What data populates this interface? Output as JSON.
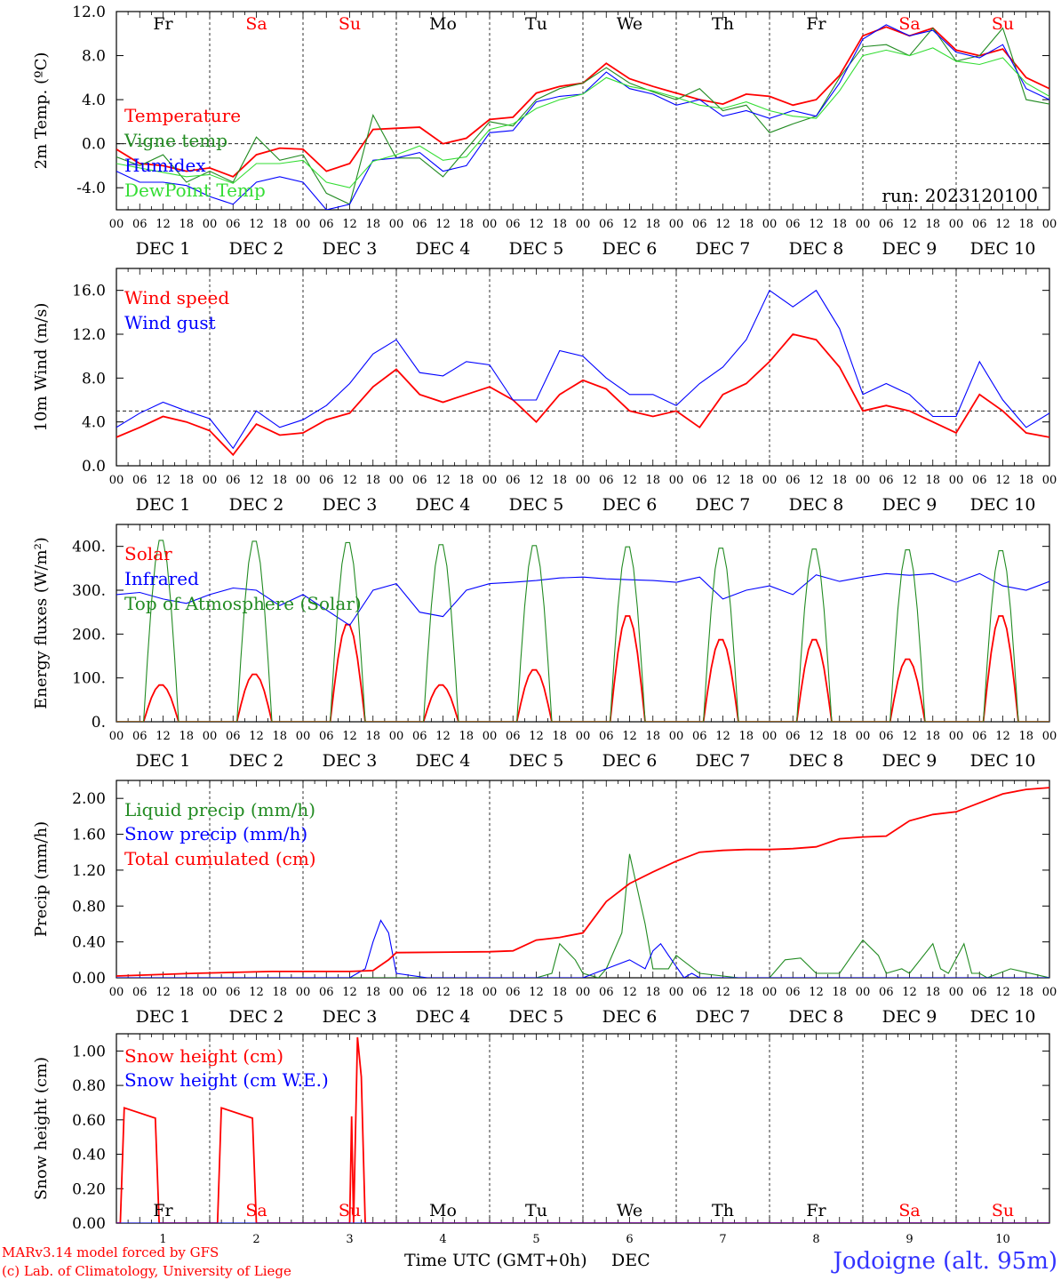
{
  "hour_labels": [
    "00",
    "06",
    "12",
    "18"
  ],
  "dates": [
    "DEC  1",
    "DEC  2",
    "DEC  3",
    "DEC  4",
    "DEC  5",
    "DEC  6",
    "DEC  7",
    "DEC  8",
    "DEC  9",
    "DEC 10"
  ],
  "day_names": [
    {
      "name": "Fr",
      "color": "#000000"
    },
    {
      "name": "Sa",
      "color": "#ff0000"
    },
    {
      "name": "Su",
      "color": "#ff0000"
    },
    {
      "name": "Mo",
      "color": "#000000"
    },
    {
      "name": "Tu",
      "color": "#000000"
    },
    {
      "name": "We",
      "color": "#000000"
    },
    {
      "name": "Th",
      "color": "#000000"
    },
    {
      "name": "Fr",
      "color": "#000000"
    },
    {
      "name": "Sa",
      "color": "#ff0000"
    },
    {
      "name": "Su",
      "color": "#ff0000"
    }
  ],
  "bottom_day_numbers": [
    "1",
    "2",
    "3",
    "4",
    "5",
    "6",
    "7",
    "8",
    "9",
    "10"
  ],
  "footer": {
    "model": "MARv3.14 model forced by GFS",
    "copyright": "(c) Lab. of Climatology, University of Liege",
    "xlabel": "Time UTC (GMT+0h)",
    "xlabel_month": "DEC",
    "station": "Jodoigne (alt. 95m)"
  },
  "colors": {
    "red": "#ff0000",
    "green": "#228b22",
    "blue": "#0000ff",
    "lightgreen": "#33dd33",
    "station": "#3333ff"
  },
  "chart_data": [
    {
      "id": "temp",
      "type": "line",
      "ylabel": "2m Temp. (ºC)",
      "ylim": [
        -6,
        12
      ],
      "yticks": [
        -4.0,
        0.0,
        4.0,
        8.0,
        12.0
      ],
      "ytick_labels": [
        "-4.0",
        "0.0",
        "4.0",
        "8.0",
        "12.0"
      ],
      "refline": 0,
      "annotation": "run: 2023120100",
      "x_unit": "hours since DEC 1 00 UTC",
      "series": [
        {
          "name": "Temperature",
          "color": "red",
          "x": [
            0,
            6,
            12,
            18,
            24,
            30,
            36,
            42,
            48,
            54,
            60,
            66,
            72,
            78,
            84,
            90,
            96,
            102,
            108,
            114,
            120,
            126,
            132,
            138,
            144,
            150,
            156,
            162,
            168,
            174,
            180,
            186,
            192,
            198,
            204,
            210,
            216,
            222,
            228,
            234,
            240
          ],
          "y": [
            -0.5,
            -1.8,
            -2.0,
            -2.5,
            -2.2,
            -3.0,
            -1.0,
            -0.4,
            -0.5,
            -2.5,
            -1.8,
            1.3,
            1.4,
            1.5,
            0.0,
            0.5,
            2.2,
            2.4,
            4.6,
            5.2,
            5.5,
            7.3,
            5.9,
            5.2,
            4.6,
            4.0,
            3.6,
            4.5,
            4.3,
            3.5,
            4.0,
            6.2,
            9.8,
            10.6,
            9.8,
            10.5,
            8.5,
            8.0,
            8.6,
            6.0,
            5.0
          ]
        },
        {
          "name": "Vigne temp",
          "color": "green",
          "x": [
            0,
            6,
            12,
            18,
            24,
            30,
            36,
            42,
            48,
            54,
            60,
            66,
            72,
            78,
            84,
            90,
            96,
            102,
            108,
            114,
            120,
            126,
            132,
            138,
            144,
            150,
            156,
            162,
            168,
            174,
            180,
            186,
            192,
            198,
            204,
            210,
            216,
            222,
            228,
            234,
            240
          ],
          "y": [
            -1.2,
            -2.0,
            -1.0,
            -3.5,
            -2.5,
            -3.5,
            0.6,
            -1.5,
            -1.0,
            -4.5,
            -5.5,
            2.6,
            -1.3,
            -1.3,
            -3.0,
            -0.5,
            2.0,
            1.6,
            4.0,
            5.0,
            5.5,
            6.9,
            5.5,
            4.7,
            4.0,
            5.0,
            3.0,
            3.5,
            1.0,
            1.8,
            2.5,
            6.0,
            8.8,
            9.0,
            8.0,
            10.5,
            7.5,
            8.0,
            10.5,
            4.0,
            3.6
          ]
        },
        {
          "name": "Humidex",
          "color": "blue",
          "x": [
            0,
            6,
            12,
            18,
            24,
            30,
            36,
            42,
            48,
            54,
            60,
            66,
            72,
            78,
            84,
            90,
            96,
            102,
            108,
            114,
            120,
            126,
            132,
            138,
            144,
            150,
            156,
            162,
            168,
            174,
            180,
            186,
            192,
            198,
            204,
            210,
            216,
            222,
            228,
            234,
            240
          ],
          "y": [
            -2.5,
            -3.5,
            -3.5,
            -3.8,
            -4.8,
            -5.5,
            -3.5,
            -3.0,
            -3.5,
            -6.0,
            -5.5,
            -1.5,
            -1.3,
            -0.8,
            -2.5,
            -2.0,
            1.0,
            1.2,
            3.8,
            4.3,
            4.5,
            6.5,
            5.0,
            4.5,
            3.5,
            4.0,
            2.5,
            3.0,
            2.3,
            3.0,
            2.5,
            5.5,
            9.5,
            10.8,
            9.8,
            10.3,
            8.3,
            7.8,
            9.0,
            5.0,
            4.0
          ]
        },
        {
          "name": "DewPoint Temp",
          "color": "lightgreen",
          "x": [
            0,
            6,
            12,
            18,
            24,
            30,
            36,
            42,
            48,
            54,
            60,
            66,
            72,
            78,
            84,
            90,
            96,
            102,
            108,
            114,
            120,
            126,
            132,
            138,
            144,
            150,
            156,
            162,
            168,
            174,
            180,
            186,
            192,
            198,
            204,
            210,
            216,
            222,
            228,
            234,
            240
          ],
          "y": [
            -1.8,
            -2.2,
            -2.6,
            -3.0,
            -2.8,
            -3.6,
            -1.8,
            -1.8,
            -1.5,
            -3.5,
            -4.0,
            -1.6,
            -1.0,
            -0.2,
            -1.5,
            -1.2,
            1.3,
            1.8,
            3.2,
            4.0,
            4.5,
            6.0,
            5.2,
            4.8,
            4.2,
            3.5,
            3.2,
            3.8,
            3.0,
            2.5,
            2.3,
            4.8,
            8.0,
            8.5,
            8.0,
            8.7,
            7.5,
            7.2,
            7.8,
            5.5,
            4.3
          ]
        }
      ]
    },
    {
      "id": "wind",
      "type": "line",
      "ylabel": "10m Wind (m/s)",
      "ylim": [
        0,
        18
      ],
      "yticks": [
        0.0,
        4.0,
        8.0,
        12.0,
        16.0
      ],
      "ytick_labels": [
        "0.0",
        "4.0",
        "8.0",
        "12.0",
        "16.0"
      ],
      "refline": 5,
      "series": [
        {
          "name": "Wind speed",
          "color": "red",
          "x": [
            0,
            6,
            12,
            18,
            24,
            30,
            36,
            42,
            48,
            54,
            60,
            66,
            72,
            78,
            84,
            90,
            96,
            102,
            108,
            114,
            120,
            126,
            132,
            138,
            144,
            150,
            156,
            162,
            168,
            174,
            180,
            186,
            192,
            198,
            204,
            210,
            216,
            222,
            228,
            234,
            240
          ],
          "y": [
            2.6,
            3.5,
            4.5,
            4.0,
            3.2,
            1.0,
            3.8,
            2.8,
            3.0,
            4.2,
            4.8,
            7.2,
            8.8,
            6.5,
            5.8,
            6.5,
            7.2,
            6.0,
            4.0,
            6.5,
            7.8,
            7.0,
            5.0,
            4.5,
            5.0,
            3.5,
            6.5,
            7.5,
            9.5,
            12.0,
            11.5,
            9.0,
            5.0,
            5.5,
            5.0,
            4.0,
            3.0,
            6.5,
            5.0,
            3.0,
            2.6
          ]
        },
        {
          "name": "Wind gust",
          "color": "blue",
          "x": [
            0,
            6,
            12,
            18,
            24,
            30,
            36,
            42,
            48,
            54,
            60,
            66,
            72,
            78,
            84,
            90,
            96,
            102,
            108,
            114,
            120,
            126,
            132,
            138,
            144,
            150,
            156,
            162,
            168,
            174,
            180,
            186,
            192,
            198,
            204,
            210,
            216,
            222,
            228,
            234,
            240
          ],
          "y": [
            3.5,
            4.8,
            5.8,
            5.0,
            4.3,
            1.6,
            5.0,
            3.5,
            4.2,
            5.5,
            7.5,
            10.2,
            11.5,
            8.5,
            8.2,
            9.5,
            9.2,
            6.0,
            6.0,
            10.5,
            10.0,
            8.0,
            6.5,
            6.5,
            5.5,
            7.5,
            9.0,
            11.5,
            16.0,
            14.5,
            16.0,
            12.5,
            6.5,
            7.5,
            6.5,
            4.5,
            4.5,
            9.5,
            6.0,
            3.5,
            4.8
          ]
        }
      ]
    },
    {
      "id": "energy",
      "type": "line",
      "ylabel": "Energy fluxes (W/m²)",
      "ylim": [
        0,
        450
      ],
      "yticks": [
        0,
        100,
        200,
        300,
        400
      ],
      "ytick_labels": [
        "0.",
        "100.",
        "200.",
        "300.",
        "400."
      ],
      "series": [
        {
          "name": "Solar",
          "color": "red",
          "daily_peak": [
            85,
            110,
            225,
            85,
            120,
            245,
            190,
            190,
            145,
            245
          ]
        },
        {
          "name": "Infrared",
          "color": "blue",
          "x": [
            0,
            6,
            12,
            18,
            24,
            30,
            36,
            42,
            48,
            54,
            60,
            66,
            72,
            78,
            84,
            90,
            96,
            102,
            108,
            114,
            120,
            126,
            132,
            138,
            144,
            150,
            156,
            162,
            168,
            174,
            180,
            186,
            192,
            198,
            204,
            210,
            216,
            222,
            228,
            234,
            240
          ],
          "y": [
            290,
            295,
            280,
            270,
            290,
            305,
            300,
            265,
            290,
            255,
            220,
            300,
            315,
            250,
            240,
            300,
            315,
            318,
            322,
            328,
            330,
            326,
            324,
            322,
            318,
            330,
            280,
            300,
            310,
            290,
            335,
            320,
            330,
            338,
            334,
            338,
            318,
            338,
            310,
            300,
            320
          ]
        },
        {
          "name": "Top of Atmosphere (Solar)",
          "color": "green",
          "daily_peak": [
            420,
            418,
            415,
            410,
            408,
            405,
            402,
            400,
            398,
            396
          ]
        }
      ]
    },
    {
      "id": "precip",
      "type": "line",
      "ylabel": "Precip (mm/h)",
      "ylim": [
        0,
        2.2
      ],
      "yticks": [
        0.0,
        0.4,
        0.8,
        1.2,
        1.6,
        2.0
      ],
      "ytick_labels": [
        "0.00",
        "0.40",
        "0.80",
        "1.20",
        "1.60",
        "2.00"
      ],
      "series": [
        {
          "name": "Liquid precip (mm/h)",
          "color": "green",
          "x": [
            0,
            20,
            40,
            60,
            66,
            70,
            72,
            80,
            96,
            102,
            108,
            112,
            114,
            118,
            120,
            124,
            126,
            130,
            132,
            136,
            138,
            142,
            144,
            150,
            160,
            168,
            172,
            176,
            180,
            186,
            190,
            192,
            196,
            198,
            202,
            204,
            210,
            212,
            214,
            218,
            220,
            222,
            224,
            230,
            240
          ],
          "y": [
            0,
            0,
            0,
            0,
            0,
            0,
            0,
            0,
            0,
            0,
            0,
            0.05,
            0.38,
            0.2,
            0.05,
            0,
            0.1,
            0.5,
            1.38,
            0.6,
            0.1,
            0.1,
            0.25,
            0.05,
            0,
            0,
            0.2,
            0.22,
            0.05,
            0.05,
            0.3,
            0.42,
            0.25,
            0.05,
            0.1,
            0.05,
            0.38,
            0.1,
            0.05,
            0.38,
            0.05,
            0.05,
            0,
            0.1,
            0
          ]
        },
        {
          "name": "Snow precip (mm/h)",
          "color": "blue",
          "x": [
            0,
            60,
            64,
            66,
            68,
            70,
            72,
            80,
            120,
            126,
            132,
            136,
            138,
            140,
            142,
            146,
            148,
            150,
            152,
            160,
            240
          ],
          "y": [
            0,
            0,
            0.1,
            0.4,
            0.64,
            0.5,
            0.05,
            0,
            0,
            0.1,
            0.2,
            0.1,
            0.3,
            0.38,
            0.25,
            0,
            0.05,
            0,
            0,
            0,
            0
          ]
        },
        {
          "name": "Total cumulated (cm)",
          "color": "red",
          "x": [
            0,
            20,
            40,
            60,
            66,
            70,
            72,
            96,
            102,
            108,
            114,
            120,
            126,
            132,
            138,
            144,
            150,
            156,
            162,
            168,
            174,
            180,
            186,
            192,
            198,
            204,
            210,
            216,
            222,
            228,
            234,
            240
          ],
          "y": [
            0.02,
            0.05,
            0.07,
            0.07,
            0.08,
            0.2,
            0.28,
            0.29,
            0.3,
            0.42,
            0.45,
            0.5,
            0.85,
            1.05,
            1.18,
            1.3,
            1.4,
            1.42,
            1.43,
            1.43,
            1.44,
            1.46,
            1.55,
            1.57,
            1.58,
            1.75,
            1.82,
            1.85,
            1.95,
            2.05,
            2.1,
            2.12
          ]
        }
      ]
    },
    {
      "id": "snow",
      "type": "line",
      "ylabel": "Snow height (cm)",
      "ylim": [
        0,
        1.1
      ],
      "yticks": [
        0.0,
        0.2,
        0.4,
        0.6,
        0.8,
        1.0
      ],
      "ytick_labels": [
        "0.00",
        "0.20",
        "0.40",
        "0.60",
        "0.80",
        "1.00"
      ],
      "series": [
        {
          "name": "Snow height (cm)",
          "color": "red",
          "x": [
            0,
            1,
            2,
            10,
            11,
            24,
            26,
            27,
            35,
            36,
            48,
            60,
            60.5,
            61,
            62,
            63,
            64,
            240
          ],
          "y": [
            0,
            0,
            0.67,
            0.61,
            0,
            0,
            0,
            0.67,
            0.61,
            0,
            0,
            0,
            0.62,
            0,
            1.08,
            0.85,
            0,
            0
          ]
        },
        {
          "name": "Snow height (cm W.E.)",
          "color": "blue",
          "x": [
            0,
            240
          ],
          "y": [
            0,
            0
          ]
        }
      ]
    }
  ]
}
